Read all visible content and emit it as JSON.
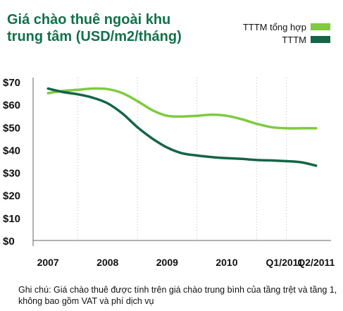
{
  "title_line1": "Giá chào thuê ngoài khu",
  "title_line2": "trung tâm (USD/m2/tháng)",
  "note": "Ghi chú: Giá chào thuê được tính trên giá chào trung bình của tầng trệt và tầng 1, không bao gồm VAT và phí dịch vụ",
  "colors": {
    "series1": "#7ecb3f",
    "series2": "#136545",
    "axis": "#666666",
    "grid": "#bbbbbb"
  },
  "chart_data": {
    "type": "line",
    "title": "Giá chào thuê ngoài khu trung tâm (USD/m2/tháng)",
    "categories": [
      "2007",
      "2008",
      "2009",
      "2010",
      "Q1/2011",
      "Q2/2011"
    ],
    "x": [
      2007.0,
      2007.25,
      2007.5,
      2007.75,
      2008.0,
      2008.25,
      2008.5,
      2008.75,
      2009.0,
      2009.25,
      2009.5,
      2009.75,
      2010.0,
      2010.25,
      2010.5,
      2010.75,
      2011.0,
      2011.25,
      2011.5
    ],
    "series": [
      {
        "name": "TTTM tổng hợp",
        "values": [
          65,
          66,
          66.5,
          67,
          66.8,
          65,
          61.5,
          57.5,
          55,
          54.7,
          55,
          55.5,
          55,
          53.5,
          51.5,
          50,
          49.5,
          49.5,
          49.5
        ]
      },
      {
        "name": "TTTM",
        "values": [
          67,
          65.5,
          64.5,
          63,
          60.5,
          56,
          50,
          45,
          41,
          38.5,
          37.5,
          36.8,
          36.3,
          36,
          35.5,
          35.3,
          35,
          34.5,
          33
        ]
      }
    ],
    "ylim": [
      0,
      70
    ],
    "yticks": [
      "$0",
      "$10",
      "$20",
      "$30",
      "$40",
      "$50",
      "$60",
      "$70"
    ],
    "ytick_values": [
      0,
      10,
      20,
      30,
      40,
      50,
      60,
      70
    ],
    "legend_position": "top-right",
    "grid": true
  }
}
